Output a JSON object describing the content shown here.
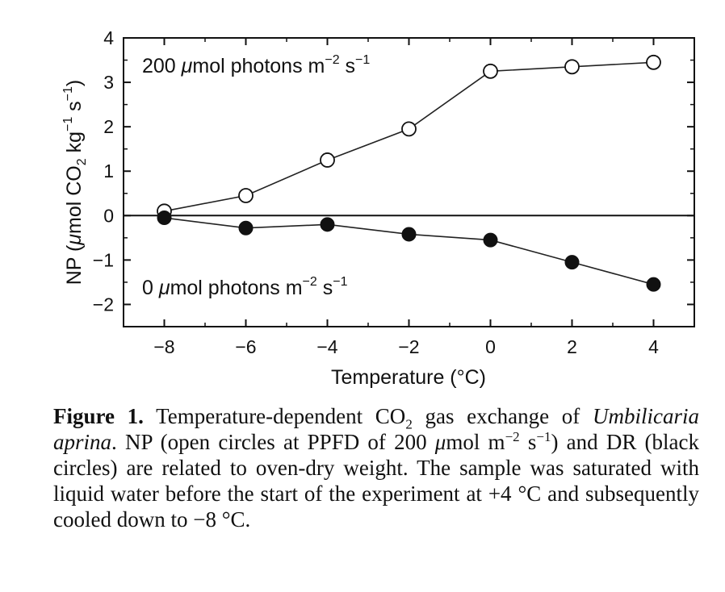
{
  "chart_data": {
    "type": "line",
    "xlabel": "Temperature (°C)",
    "ylabel": "NP (μmol CO₂ kg⁻¹ s⁻¹)",
    "xlim": [
      -9,
      5
    ],
    "ylim": [
      -2.5,
      4
    ],
    "x_ticks": [
      -8,
      -6,
      -4,
      -2,
      0,
      2,
      4
    ],
    "x_tick_labels": [
      "−8",
      "−6",
      "−4",
      "−2",
      "0",
      "2",
      "4"
    ],
    "y_ticks": [
      4,
      3,
      2,
      1,
      0,
      -1,
      -2
    ],
    "y_tick_labels": [
      "4",
      "3",
      "2",
      "1",
      "0",
      "−1",
      "−2"
    ],
    "zero_line": true,
    "series": [
      {
        "name": "200 μmol photons m⁻² s⁻¹",
        "marker": "open-circle",
        "x": [
          -8,
          -6,
          -4,
          -2,
          0,
          2,
          4
        ],
        "y": [
          0.1,
          0.45,
          1.25,
          1.95,
          3.25,
          3.35,
          3.45
        ]
      },
      {
        "name": "0 μmol photons m⁻² s⁻¹",
        "marker": "filled-circle",
        "x": [
          -8,
          -6,
          -4,
          -2,
          0,
          2,
          4
        ],
        "y": [
          -0.05,
          -0.28,
          -0.2,
          -0.42,
          -0.55,
          -1.05,
          -1.55
        ]
      }
    ]
  },
  "labels": {
    "series_open_main": "200 ",
    "series_open_mu": "μ",
    "series_open_rest": "mol  photons m",
    "series_open_sup1": "−2",
    "series_open_s": " s",
    "series_open_sup2": "−1",
    "series_filled_main": "0 ",
    "series_filled_mu": "μ",
    "series_filled_rest": "mol  photons m",
    "series_filled_sup1": "−2",
    "series_filled_s": " s",
    "series_filled_sup2": "−1",
    "ylabel_a": "NP (",
    "ylabel_mu": "μ",
    "ylabel_b": "mol CO",
    "ylabel_sub": "2",
    "ylabel_c": " kg",
    "ylabel_sup1": "−1",
    "ylabel_d": " s",
    "ylabel_sup2": "−1",
    "ylabel_e": ")",
    "xlabel": "Temperature (°C)"
  },
  "caption": {
    "figure_label": "Figure 1.",
    "t1": " Temperature-dependent CO",
    "t1_sub": "2",
    "t2": " gas exchange of ",
    "species": "Umbilicaria aprina",
    "t3": ". NP (open circles at PPFD of 200 ",
    "t3_mu": "μ",
    "t4": "mol m",
    "t4_sup": "−2",
    "t5": " s",
    "t5_sup": "−1",
    "t6": ") and DR (black circles) are related to oven-dry weight. The sample was saturated with liquid water before the start of the experiment at +4 °C and subsequently cooled down to −8 °C."
  }
}
